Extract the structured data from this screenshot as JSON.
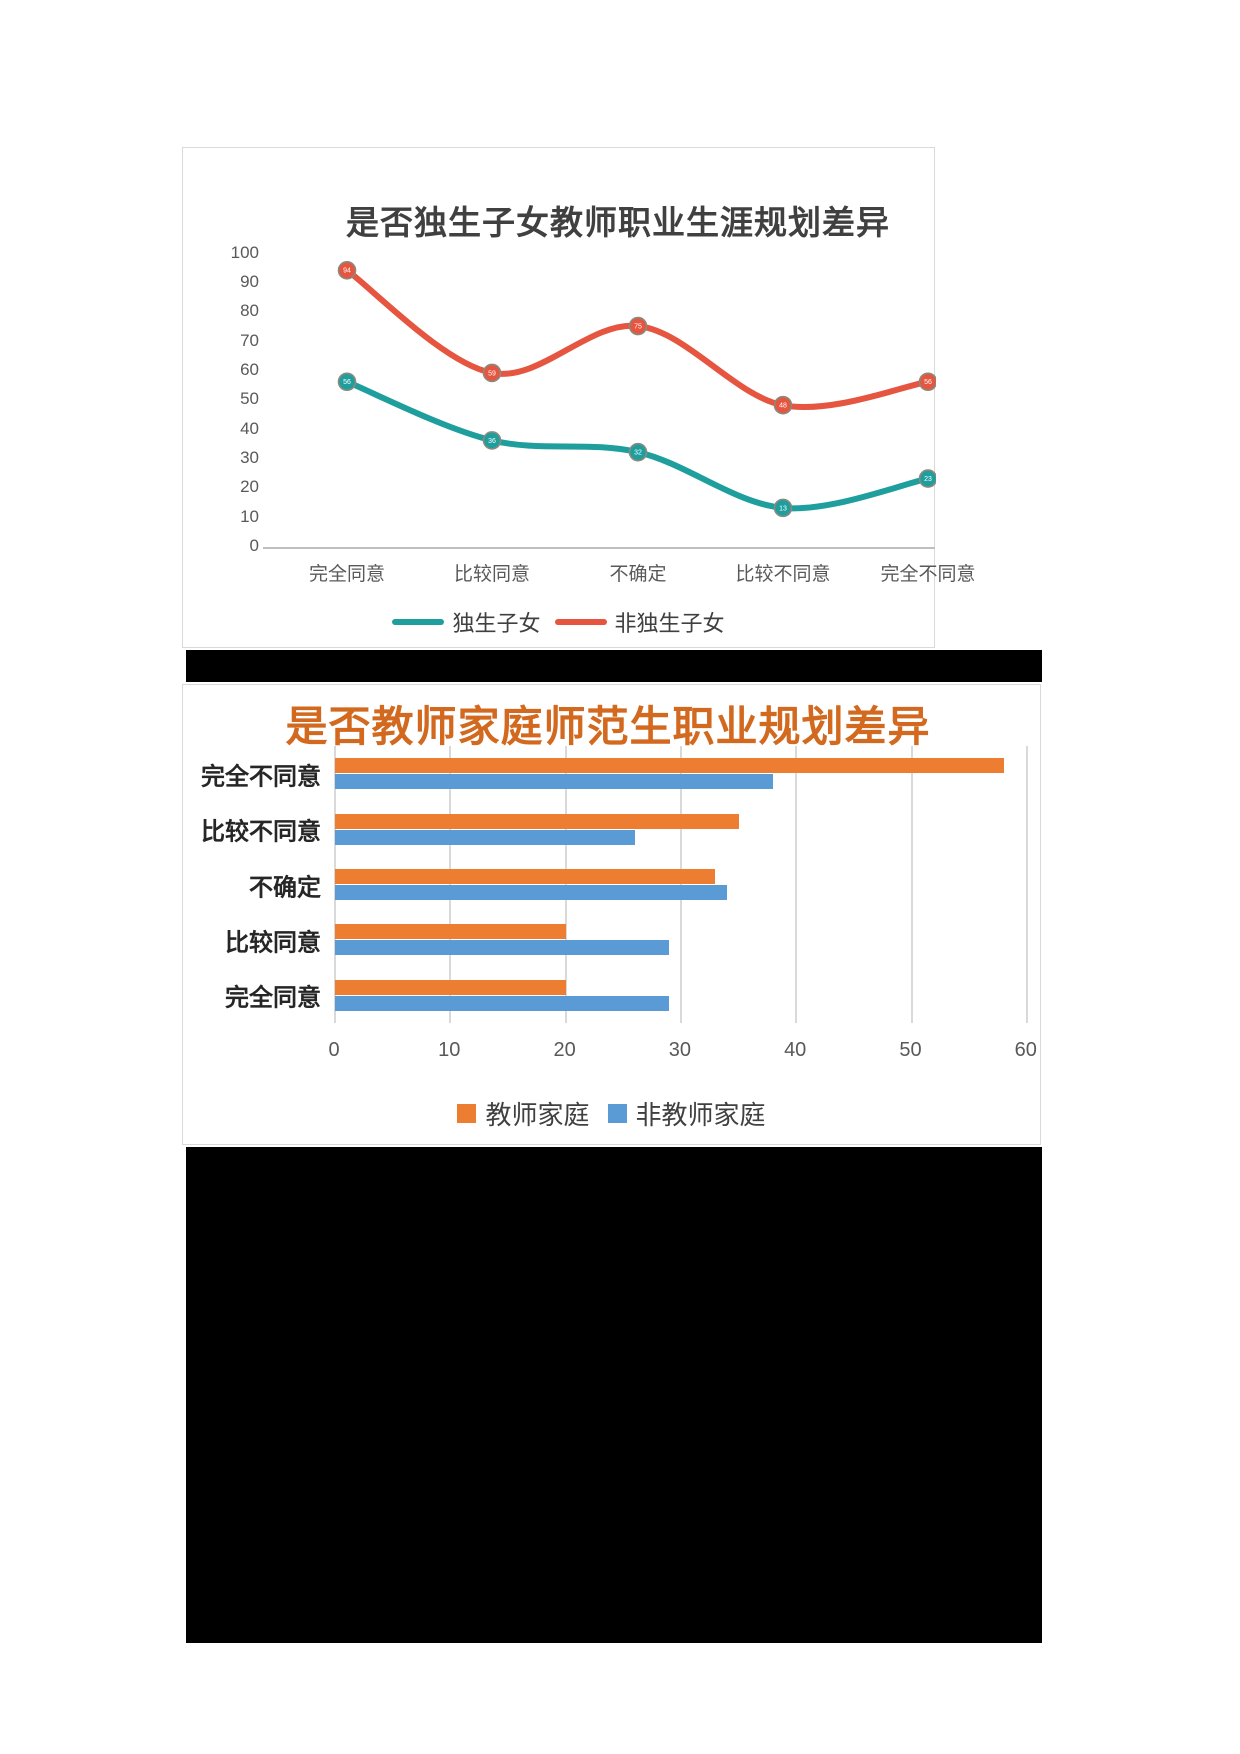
{
  "page": {
    "background": "#ffffff"
  },
  "chart_data": [
    {
      "type": "line",
      "smooth": true,
      "title": "是否独生子女教师职业生涯规划差异",
      "categories": [
        "完全同意",
        "比较同意",
        "不确定",
        "比较不同意",
        "完全不同意"
      ],
      "series": [
        {
          "name": "独生子女",
          "color": "#1f9e9e",
          "values": [
            56,
            36,
            32,
            13,
            23
          ]
        },
        {
          "name": "非独生子女",
          "color": "#e5553f",
          "values": [
            94,
            59,
            75,
            48,
            56
          ]
        }
      ],
      "ylim": [
        0,
        100
      ],
      "yticks": [
        0,
        10,
        20,
        30,
        40,
        50,
        60,
        70,
        80,
        90,
        100
      ],
      "grid": false,
      "legend_position": "bottom",
      "marker_outline": "#8a8a7e",
      "marker_label_color": "#ffffff"
    },
    {
      "type": "bar",
      "orientation": "horizontal",
      "title": "是否教师家庭师范生职业规划差异",
      "title_color": "#d2691e",
      "categories": [
        "完全不同意",
        "比较不同意",
        "不确定",
        "比较同意",
        "完全同意"
      ],
      "series": [
        {
          "name": "教师家庭",
          "color": "#ed7d31",
          "values": [
            58,
            35,
            33,
            20,
            20
          ]
        },
        {
          "name": "非教师家庭",
          "color": "#5b9bd5",
          "values": [
            38,
            26,
            34,
            29,
            29
          ]
        }
      ],
      "xlim": [
        0,
        60
      ],
      "xticks": [
        0,
        10,
        20,
        30,
        40,
        50,
        60
      ],
      "grid": true,
      "legend_position": "bottom"
    }
  ]
}
